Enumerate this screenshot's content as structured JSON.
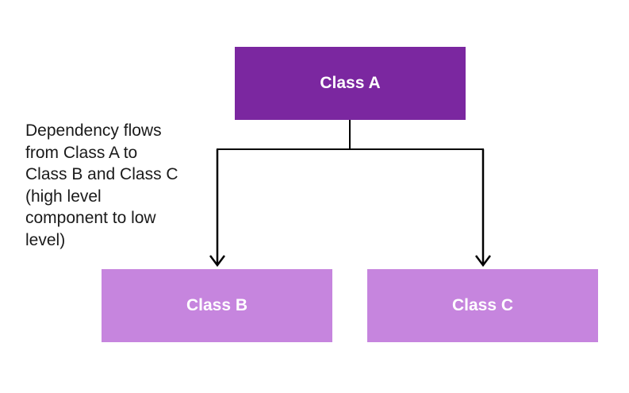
{
  "diagram": {
    "nodes": [
      {
        "id": "class-a",
        "label": "Class A",
        "color": "#7b27a0"
      },
      {
        "id": "class-b",
        "label": "Class B",
        "color": "#c685de"
      },
      {
        "id": "class-c",
        "label": "Class C",
        "color": "#c685de"
      }
    ],
    "edges": [
      {
        "from": "class-a",
        "to": "class-b"
      },
      {
        "from": "class-a",
        "to": "class-c"
      }
    ],
    "note": "Dependency flows\nfrom Class A to\nClass B and Class C\n(high level\ncomponent to low\nlevel)",
    "line_color": "#000000"
  }
}
